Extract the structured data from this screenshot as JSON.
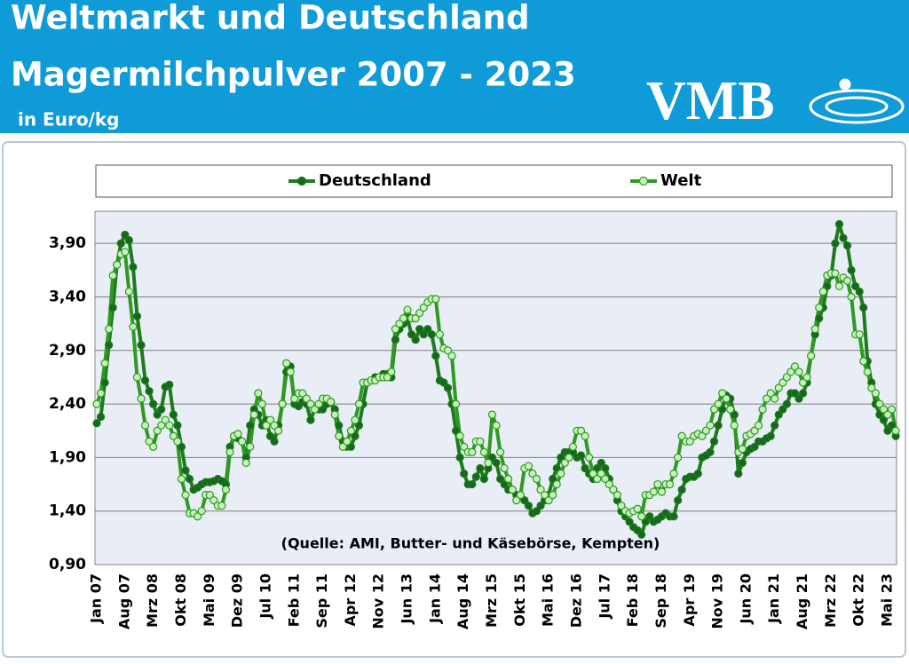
{
  "logo": "VMB",
  "chart_data": {
    "type": "line",
    "title": "Weltmarkt und Deutschland",
    "subtitle": "Magermilchpulver 2007 - 2023",
    "unit": "in Euro/kg",
    "annotation": "(Quelle: AMI, Butter- und Käsebörse, Kempten)",
    "legend": "top",
    "grid": true,
    "ylim": [
      0.9,
      4.2
    ],
    "yticks": [
      {
        "value": 0.9,
        "label": "0,90"
      },
      {
        "value": 1.4,
        "label": "1,40"
      },
      {
        "value": 1.9,
        "label": "1,90"
      },
      {
        "value": 2.4,
        "label": "2,40"
      },
      {
        "value": 2.9,
        "label": "2,90"
      },
      {
        "value": 3.4,
        "label": "3,40"
      },
      {
        "value": 3.9,
        "label": "3,90"
      }
    ],
    "categories": [
      "Jan 07",
      null,
      null,
      null,
      null,
      null,
      null,
      "Aug 07",
      null,
      null,
      null,
      null,
      null,
      null,
      "Mrz 08",
      null,
      null,
      null,
      null,
      null,
      null,
      "Okt 08",
      null,
      null,
      null,
      null,
      null,
      null,
      "Mai 09",
      null,
      null,
      null,
      null,
      null,
      null,
      "Dez 09",
      null,
      null,
      null,
      null,
      null,
      null,
      "Jul 10",
      null,
      null,
      null,
      null,
      null,
      null,
      "Feb 11",
      null,
      null,
      null,
      null,
      null,
      null,
      "Sep 11",
      null,
      null,
      null,
      null,
      null,
      null,
      "Apr 12",
      null,
      null,
      null,
      null,
      null,
      null,
      "Nov 12",
      null,
      null,
      null,
      null,
      null,
      null,
      "Jun 13",
      null,
      null,
      null,
      null,
      null,
      null,
      "Jan 14",
      null,
      null,
      null,
      null,
      null,
      null,
      "Aug 14",
      null,
      null,
      null,
      null,
      null,
      null,
      "Mrz 15",
      null,
      null,
      null,
      null,
      null,
      null,
      "Okt 15",
      null,
      null,
      null,
      null,
      null,
      null,
      "Mai 16",
      null,
      null,
      null,
      null,
      null,
      null,
      "Dez 16",
      null,
      null,
      null,
      null,
      null,
      null,
      "Jul 17",
      null,
      null,
      null,
      null,
      null,
      null,
      "Feb 18",
      null,
      null,
      null,
      null,
      null,
      null,
      "Sep 18",
      null,
      null,
      null,
      null,
      null,
      null,
      "Apr 19",
      null,
      null,
      null,
      null,
      null,
      null,
      "Nov 19",
      null,
      null,
      null,
      null,
      null,
      null,
      "Jun 20",
      null,
      null,
      null,
      null,
      null,
      null,
      "Jan 21",
      null,
      null,
      null,
      null,
      null,
      null,
      "Aug 21",
      null,
      null,
      null,
      null,
      null,
      null,
      "Mrz 22",
      null,
      null,
      null,
      null,
      null,
      null,
      "Okt 22",
      null,
      null,
      null,
      null,
      null,
      null,
      "Mai 23",
      null,
      null
    ],
    "series": [
      {
        "name": "Deutschland",
        "color": "#1e7a1e",
        "marker": "#16691a",
        "values": [
          2.22,
          2.28,
          2.6,
          2.95,
          3.3,
          3.7,
          3.9,
          3.98,
          3.93,
          3.68,
          3.22,
          2.95,
          2.62,
          2.52,
          2.4,
          2.3,
          2.35,
          2.56,
          2.58,
          2.3,
          2.2,
          2.0,
          1.78,
          1.7,
          1.6,
          1.62,
          1.65,
          1.67,
          1.67,
          1.68,
          1.7,
          1.68,
          1.65,
          2.0,
          2.1,
          2.08,
          2.05,
          1.9,
          2.2,
          2.35,
          2.3,
          2.2,
          2.25,
          2.1,
          2.05,
          2.2,
          2.4,
          2.7,
          2.75,
          2.4,
          2.38,
          2.42,
          2.4,
          2.25,
          2.35,
          2.35,
          2.35,
          2.4,
          2.42,
          2.35,
          2.2,
          2.05,
          2.0,
          2.0,
          2.1,
          2.2,
          2.4,
          2.6,
          2.62,
          2.65,
          2.65,
          2.68,
          2.68,
          2.65,
          3.0,
          3.1,
          3.15,
          3.2,
          3.05,
          3.0,
          3.1,
          3.05,
          3.1,
          3.05,
          2.85,
          2.62,
          2.6,
          2.55,
          2.4,
          2.15,
          1.9,
          1.75,
          1.65,
          1.65,
          1.72,
          1.8,
          1.7,
          1.8,
          1.9,
          1.85,
          1.7,
          1.65,
          1.6,
          1.6,
          1.55,
          1.55,
          1.5,
          1.45,
          1.38,
          1.4,
          1.45,
          1.5,
          1.55,
          1.7,
          1.8,
          1.9,
          1.95,
          1.95,
          1.95,
          1.9,
          1.92,
          1.8,
          1.75,
          1.7,
          1.8,
          1.85,
          1.8,
          1.7,
          1.6,
          1.5,
          1.4,
          1.35,
          1.3,
          1.25,
          1.22,
          1.18,
          1.3,
          1.35,
          1.3,
          1.32,
          1.35,
          1.38,
          1.35,
          1.35,
          1.5,
          1.6,
          1.7,
          1.72,
          1.72,
          1.75,
          1.9,
          1.92,
          1.95,
          2.05,
          2.2,
          2.35,
          2.48,
          2.45,
          2.3,
          1.75,
          1.85,
          1.95,
          1.98,
          2.0,
          2.05,
          2.05,
          2.08,
          2.1,
          2.2,
          2.3,
          2.35,
          2.4,
          2.5,
          2.5,
          2.45,
          2.5,
          2.6,
          2.85,
          3.05,
          3.2,
          3.3,
          3.5,
          3.6,
          3.9,
          4.08,
          3.95,
          3.88,
          3.65,
          3.5,
          3.45,
          3.3,
          2.8,
          2.6,
          2.4,
          2.3,
          2.25,
          2.15,
          2.2,
          2.1
        ]
      },
      {
        "name": "Welt",
        "color": "#2e9a22",
        "marker": "#c8f2bc",
        "values": [
          2.4,
          2.5,
          2.78,
          3.1,
          3.6,
          3.7,
          3.8,
          3.82,
          3.45,
          3.12,
          2.65,
          2.45,
          2.2,
          2.05,
          2.0,
          2.15,
          2.2,
          2.25,
          2.2,
          2.1,
          2.05,
          1.7,
          1.55,
          1.38,
          1.38,
          1.35,
          1.4,
          1.55,
          1.55,
          1.5,
          1.45,
          1.45,
          1.6,
          1.95,
          2.1,
          2.12,
          2.05,
          1.85,
          2.0,
          2.3,
          2.5,
          2.4,
          2.2,
          2.25,
          2.2,
          2.15,
          2.4,
          2.78,
          2.7,
          2.45,
          2.5,
          2.5,
          2.45,
          2.4,
          2.35,
          2.4,
          2.45,
          2.45,
          2.42,
          2.3,
          2.1,
          2.0,
          2.05,
          2.15,
          2.25,
          2.4,
          2.6,
          2.6,
          2.62,
          2.62,
          2.65,
          2.65,
          2.65,
          2.7,
          3.1,
          3.15,
          3.2,
          3.28,
          3.2,
          3.2,
          3.25,
          3.3,
          3.35,
          3.38,
          3.38,
          3.05,
          2.92,
          2.9,
          2.85,
          2.4,
          2.1,
          2.0,
          1.95,
          1.95,
          2.05,
          2.05,
          1.95,
          1.85,
          2.3,
          2.2,
          1.95,
          1.8,
          1.7,
          1.6,
          1.5,
          1.55,
          1.8,
          1.82,
          1.75,
          1.7,
          1.6,
          1.55,
          1.5,
          1.55,
          1.65,
          1.75,
          1.85,
          1.9,
          2.0,
          2.15,
          2.15,
          2.1,
          1.9,
          1.75,
          1.7,
          1.75,
          1.7,
          1.65,
          1.6,
          1.55,
          1.45,
          1.4,
          1.38,
          1.4,
          1.42,
          1.35,
          1.55,
          1.55,
          1.58,
          1.65,
          1.58,
          1.65,
          1.65,
          1.75,
          1.9,
          2.1,
          2.05,
          2.05,
          2.1,
          2.12,
          2.1,
          2.15,
          2.2,
          2.35,
          2.4,
          2.5,
          2.45,
          2.35,
          2.2,
          1.95,
          1.98,
          2.1,
          2.12,
          2.15,
          2.2,
          2.35,
          2.45,
          2.5,
          2.45,
          2.55,
          2.6,
          2.65,
          2.7,
          2.75,
          2.7,
          2.6,
          2.65,
          2.85,
          3.1,
          3.3,
          3.45,
          3.6,
          3.62,
          3.62,
          3.5,
          3.58,
          3.55,
          3.4,
          3.05,
          3.05,
          2.8,
          2.7,
          2.55,
          2.5,
          2.4,
          2.35,
          2.3,
          2.35,
          2.15
        ]
      }
    ]
  }
}
